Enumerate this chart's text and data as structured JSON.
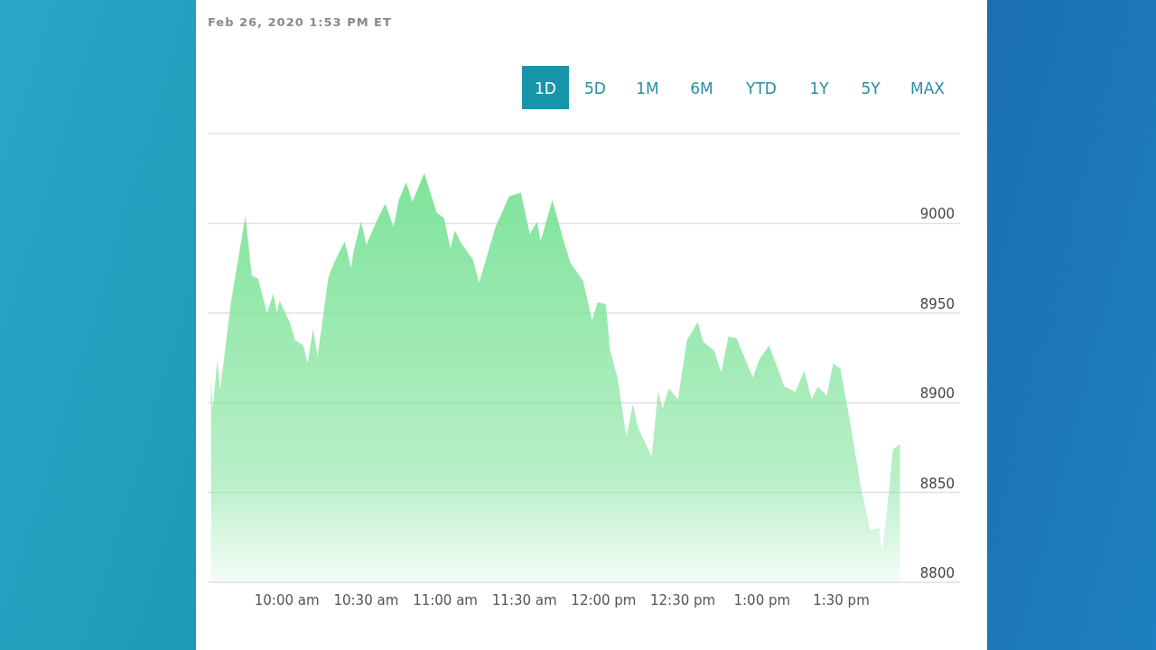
{
  "chart_data": {
    "type": "area",
    "color": "#7ee39a",
    "annotations": [
      "Feb 26, 2020 1:53 PM ET",
      "1D",
      "5D",
      "1M",
      "6M",
      "YTD",
      "1Y",
      "5Y",
      "MAX"
    ],
    "x": [
      9.521,
      9.532,
      9.561,
      9.578,
      9.647,
      9.738,
      9.778,
      9.818,
      9.875,
      9.914,
      9.937,
      9.954,
      10.017,
      10.051,
      10.103,
      10.131,
      10.165,
      10.194,
      10.262,
      10.308,
      10.365,
      10.405,
      10.422,
      10.468,
      10.502,
      10.559,
      10.621,
      10.673,
      10.707,
      10.753,
      10.792,
      10.867,
      10.946,
      10.992,
      11.032,
      11.06,
      11.1,
      11.174,
      11.214,
      11.317,
      11.403,
      11.477,
      11.534,
      11.579,
      11.602,
      11.676,
      11.745,
      11.79,
      11.87,
      11.927,
      11.961,
      12.013,
      12.041,
      12.087,
      12.144,
      12.184,
      12.218,
      12.303,
      12.343,
      12.372,
      12.412,
      12.469,
      12.526,
      12.594,
      12.628,
      12.697,
      12.742,
      12.788,
      12.839,
      12.942,
      12.982,
      13.044,
      13.141,
      13.21,
      13.267,
      13.312,
      13.352,
      13.409,
      13.449,
      13.495,
      13.552,
      13.626,
      13.683,
      13.74,
      13.757,
      13.786,
      13.826,
      13.871
    ],
    "values": [
      8912,
      8897,
      8924,
      8907,
      8956,
      9004,
      8971,
      8969,
      8950,
      8961,
      8950,
      8957,
      8945,
      8935,
      8932,
      8922,
      8941,
      8926,
      8970,
      8980,
      8990,
      8975,
      8985,
      9001,
      8988,
      9000,
      9011,
      8998,
      9013,
      9023,
      9012,
      9028,
      9006,
      9003,
      8986,
      8996,
      8989,
      8980,
      8967,
      8998,
      9015,
      9017,
      8994,
      9001,
      8990,
      9013,
      8991,
      8978,
      8968,
      8946,
      8956,
      8955,
      8929,
      8914,
      8881,
      8899,
      8886,
      8870,
      8906,
      8897,
      8908,
      8902,
      8935,
      8945,
      8934,
      8929,
      8917,
      8937,
      8936,
      8914,
      8924,
      8932,
      8909,
      8906,
      8918,
      8902,
      8909,
      8904,
      8922,
      8919,
      8891,
      8852,
      8829,
      8830,
      8817,
      8837,
      8874,
      8877
    ],
    "xlim": [
      9.5,
      14.25
    ],
    "xticks": [
      {
        "value": 10,
        "label": "10:00 am"
      },
      {
        "value": 10.5,
        "label": "10:30 am"
      },
      {
        "value": 11,
        "label": "11:00 am"
      },
      {
        "value": 11.5,
        "label": "11:30 am"
      },
      {
        "value": 12,
        "label": "12:00 pm"
      },
      {
        "value": 12.5,
        "label": "12:30 pm"
      },
      {
        "value": 13,
        "label": "1:00 pm"
      },
      {
        "value": 13.5,
        "label": "1:30 pm"
      }
    ],
    "ylim": [
      8800,
      9050
    ],
    "yticks": [
      8800,
      8850,
      8900,
      8950,
      9000,
      {
        "value": 9050,
        "label": null
      }
    ],
    "grid": "y"
  }
}
